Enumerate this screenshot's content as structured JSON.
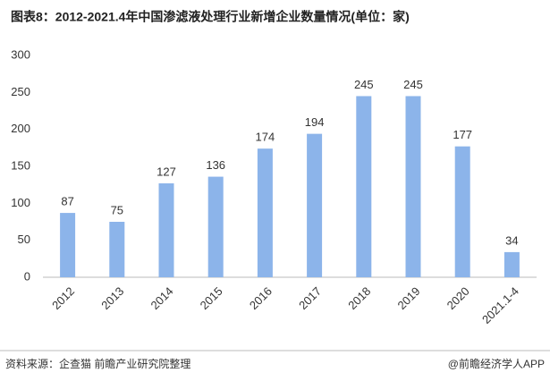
{
  "chart_data": {
    "type": "bar",
    "title": "图表8：2012-2021.4年中国渗滤液处理行业新增企业数量情况(单位：家)",
    "categories": [
      "2012",
      "2013",
      "2014",
      "2015",
      "2016",
      "2017",
      "2018",
      "2019",
      "2020",
      "2021.1-4"
    ],
    "values": [
      87,
      75,
      127,
      136,
      174,
      194,
      245,
      245,
      177,
      34
    ],
    "color": "#8cb4ea",
    "ylim": [
      0,
      300
    ],
    "yticks": [
      0,
      50,
      100,
      150,
      200,
      250,
      300
    ],
    "grid": false
  },
  "footer": {
    "source": "资料来源：企查猫 前瞻产业研究院整理",
    "brand": "@前瞻经济学人APP"
  }
}
